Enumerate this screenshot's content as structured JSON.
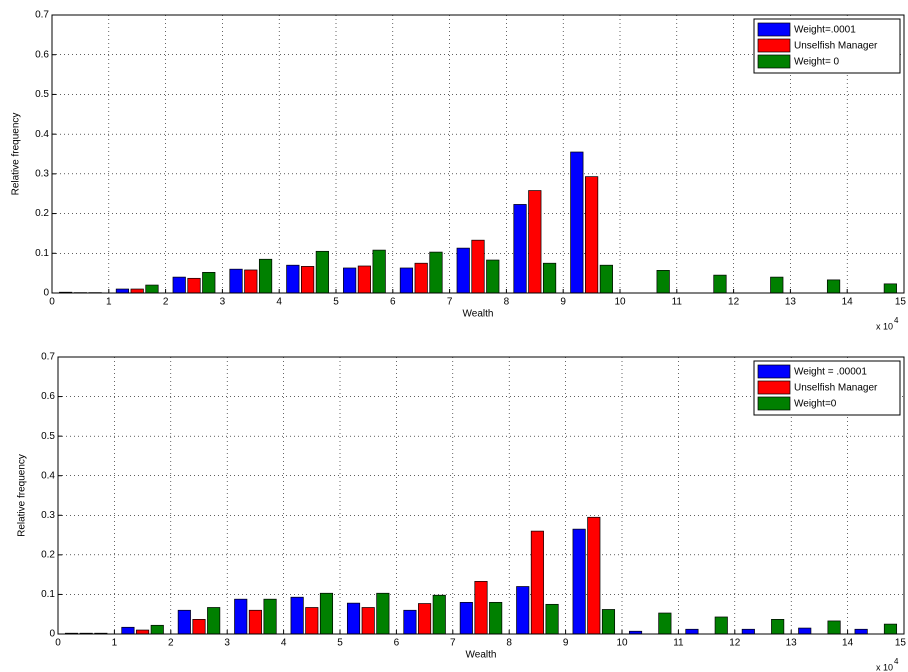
{
  "chart_data": [
    {
      "type": "bar",
      "x_label": "Wealth",
      "y_label": "Relative frequency",
      "x_scale_label": "x 10",
      "x_scale_exponent": "4",
      "x": [
        0.5,
        1.5,
        2.5,
        3.5,
        4.5,
        5.5,
        6.5,
        7.5,
        8.5,
        9.5,
        10.5,
        11.5,
        12.5,
        13.5,
        14.5
      ],
      "series": [
        {
          "name": "Weight=.0001",
          "color": "#0000ff",
          "values": [
            0.002,
            0.01,
            0.04,
            0.06,
            0.07,
            0.063,
            0.063,
            0.113,
            0.223,
            0.355,
            0,
            0,
            0,
            0,
            0
          ]
        },
        {
          "name": "Unselfish Manager",
          "color": "#ff0000",
          "values": [
            0.001,
            0.01,
            0.037,
            0.058,
            0.067,
            0.068,
            0.075,
            0.133,
            0.258,
            0.293,
            0,
            0,
            0,
            0,
            0
          ]
        },
        {
          "name": "Weight= 0",
          "color": "#008000",
          "values": [
            0.001,
            0.02,
            0.052,
            0.085,
            0.105,
            0.108,
            0.103,
            0.083,
            0.075,
            0.07,
            0.057,
            0.045,
            0.04,
            0.033,
            0.023
          ]
        }
      ],
      "xlim": [
        0,
        15
      ],
      "xticks": [
        0,
        1,
        2,
        3,
        4,
        5,
        6,
        7,
        8,
        9,
        10,
        11,
        12,
        13,
        14,
        15
      ],
      "ylim": [
        0,
        0.7
      ],
      "yticks": [
        0,
        0.1,
        0.2,
        0.3,
        0.4,
        0.5,
        0.6,
        0.7
      ],
      "grid": true,
      "legend": "upper right"
    },
    {
      "type": "bar",
      "x_label": "Wealth",
      "y_label": "Relative frequency",
      "x_scale_label": "x 10",
      "x_scale_exponent": "4",
      "x": [
        0.5,
        1.5,
        2.5,
        3.5,
        4.5,
        5.5,
        6.5,
        7.5,
        8.5,
        9.5,
        10.5,
        11.5,
        12.5,
        13.5,
        14.5
      ],
      "series": [
        {
          "name": "Weight = .00001",
          "color": "#0000ff",
          "values": [
            0.002,
            0.017,
            0.06,
            0.088,
            0.093,
            0.078,
            0.06,
            0.08,
            0.12,
            0.265,
            0.007,
            0.012,
            0.012,
            0.015,
            0.012
          ]
        },
        {
          "name": "Unselfish Manager",
          "color": "#ff0000",
          "values": [
            0.002,
            0.01,
            0.037,
            0.06,
            0.067,
            0.067,
            0.077,
            0.133,
            0.26,
            0.295,
            0,
            0,
            0,
            0,
            0
          ]
        },
        {
          "name": "Weight=0",
          "color": "#008000",
          "values": [
            0.002,
            0.022,
            0.067,
            0.088,
            0.103,
            0.103,
            0.098,
            0.08,
            0.075,
            0.062,
            0.053,
            0.043,
            0.037,
            0.033,
            0.025
          ]
        }
      ],
      "xlim": [
        0,
        15
      ],
      "xticks": [
        0,
        1,
        2,
        3,
        4,
        5,
        6,
        7,
        8,
        9,
        10,
        11,
        12,
        13,
        14,
        15
      ],
      "ylim": [
        0,
        0.7
      ],
      "yticks": [
        0,
        0.1,
        0.2,
        0.3,
        0.4,
        0.5,
        0.6,
        0.7
      ],
      "grid": true,
      "legend": "upper right"
    }
  ]
}
